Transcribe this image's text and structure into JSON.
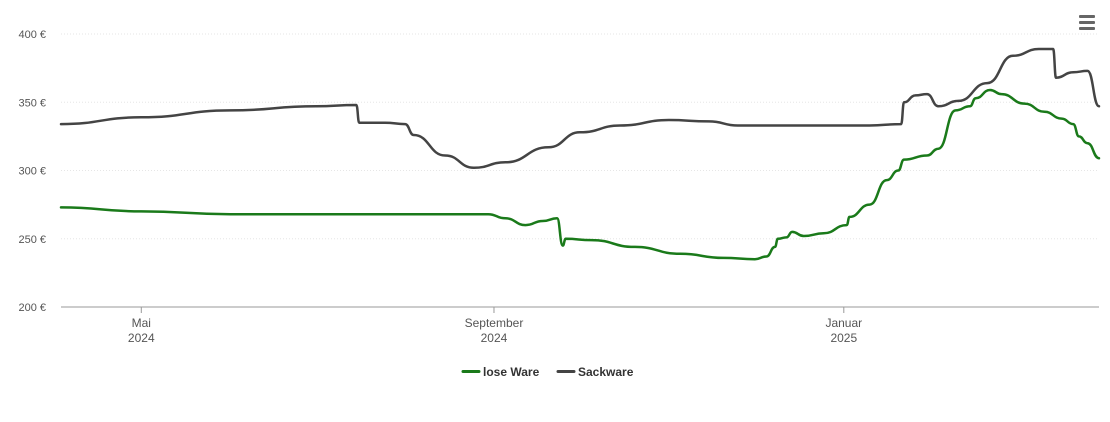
{
  "menu": {
    "icon": "hamburger-menu-icon"
  },
  "chart_data": {
    "type": "line",
    "title": "",
    "xlabel": "",
    "ylabel": "",
    "ylim": [
      200,
      400
    ],
    "yticks": [
      {
        "value": 200,
        "label": "200 €"
      },
      {
        "value": 250,
        "label": "250 €"
      },
      {
        "value": 300,
        "label": "300 €"
      },
      {
        "value": 350,
        "label": "350 €"
      },
      {
        "value": 400,
        "label": "400 €"
      }
    ],
    "xlim": [
      "2024-04-03",
      "2025-03-31"
    ],
    "xticks": [
      {
        "date": "2024-05-01",
        "label": "Mai",
        "sublabel": "2024"
      },
      {
        "date": "2024-09-01",
        "label": "September",
        "sublabel": "2024"
      },
      {
        "date": "2025-01-01",
        "label": "Januar",
        "sublabel": "2025"
      }
    ],
    "grid": true,
    "legend": "bottom-center",
    "series": [
      {
        "name": "lose Ware",
        "color": "#1a7a1a",
        "points": [
          [
            "2024-04-03",
            273
          ],
          [
            "2024-05-01",
            270
          ],
          [
            "2024-06-01",
            268
          ],
          [
            "2024-07-01",
            268
          ],
          [
            "2024-08-01",
            268
          ],
          [
            "2024-08-30",
            268
          ],
          [
            "2024-09-05",
            265
          ],
          [
            "2024-09-12",
            260
          ],
          [
            "2024-09-18",
            263
          ],
          [
            "2024-09-23",
            265
          ],
          [
            "2024-09-25",
            245
          ],
          [
            "2024-09-26",
            250
          ],
          [
            "2024-10-05",
            249
          ],
          [
            "2024-10-20",
            244
          ],
          [
            "2024-11-05",
            239
          ],
          [
            "2024-11-20",
            236
          ],
          [
            "2024-12-01",
            235
          ],
          [
            "2024-12-05",
            237
          ],
          [
            "2024-12-08",
            244
          ],
          [
            "2024-12-09",
            250
          ],
          [
            "2024-12-12",
            251
          ],
          [
            "2024-12-14",
            255
          ],
          [
            "2024-12-18",
            252
          ],
          [
            "2024-12-25",
            254
          ],
          [
            "2025-01-02",
            260
          ],
          [
            "2025-01-03",
            266
          ],
          [
            "2025-01-10",
            275
          ],
          [
            "2025-01-16",
            293
          ],
          [
            "2025-01-20",
            300
          ],
          [
            "2025-01-22",
            308
          ],
          [
            "2025-01-30",
            311
          ],
          [
            "2025-02-03",
            316
          ],
          [
            "2025-02-09",
            344
          ],
          [
            "2025-02-14",
            347
          ],
          [
            "2025-02-16",
            353
          ],
          [
            "2025-02-21",
            359
          ],
          [
            "2025-02-25",
            356
          ],
          [
            "2025-03-05",
            349
          ],
          [
            "2025-03-12",
            343
          ],
          [
            "2025-03-18",
            338
          ],
          [
            "2025-03-22",
            334
          ],
          [
            "2025-03-24",
            325
          ],
          [
            "2025-03-27",
            320
          ],
          [
            "2025-03-31",
            309
          ]
        ]
      },
      {
        "name": "Sackware",
        "color": "#444444",
        "points": [
          [
            "2024-04-03",
            334
          ],
          [
            "2024-05-01",
            339
          ],
          [
            "2024-06-01",
            344
          ],
          [
            "2024-07-01",
            347
          ],
          [
            "2024-07-15",
            348
          ],
          [
            "2024-07-16",
            335
          ],
          [
            "2024-07-25",
            335
          ],
          [
            "2024-08-01",
            334
          ],
          [
            "2024-08-04",
            326
          ],
          [
            "2024-08-15",
            311
          ],
          [
            "2024-08-25",
            302
          ],
          [
            "2024-09-05",
            306
          ],
          [
            "2024-09-20",
            317
          ],
          [
            "2024-10-01",
            328
          ],
          [
            "2024-10-15",
            333
          ],
          [
            "2024-11-01",
            337
          ],
          [
            "2024-11-15",
            336
          ],
          [
            "2024-11-25",
            333
          ],
          [
            "2024-12-15",
            333
          ],
          [
            "2025-01-10",
            333
          ],
          [
            "2025-01-21",
            334
          ],
          [
            "2025-01-22",
            350
          ],
          [
            "2025-01-26",
            355
          ],
          [
            "2025-01-30",
            356
          ],
          [
            "2025-02-03",
            347
          ],
          [
            "2025-02-10",
            351
          ],
          [
            "2025-02-20",
            364
          ],
          [
            "2025-03-01",
            384
          ],
          [
            "2025-03-10",
            389
          ],
          [
            "2025-03-15",
            389
          ],
          [
            "2025-03-16",
            368
          ],
          [
            "2025-03-22",
            372
          ],
          [
            "2025-03-27",
            373
          ],
          [
            "2025-03-31",
            347
          ]
        ]
      }
    ]
  }
}
